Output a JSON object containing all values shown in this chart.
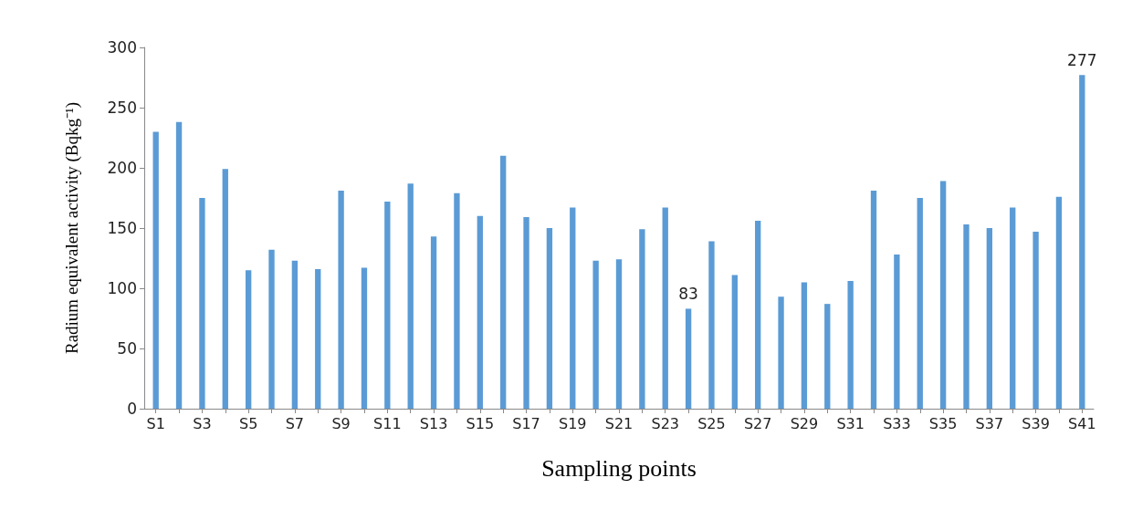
{
  "chart_data": {
    "type": "bar",
    "xlabel": "Sampling points",
    "ylabel": "Radium equivalent activity (Bqkg⁻¹)",
    "categories": [
      "S1",
      null,
      "S3",
      null,
      "S5",
      null,
      "S7",
      null,
      "S9",
      null,
      "S11",
      null,
      "S13",
      null,
      "S15",
      null,
      "S17",
      null,
      "S19",
      null,
      "S21",
      null,
      "S23",
      null,
      "S25",
      null,
      "S27",
      null,
      "S29",
      null,
      "S31",
      null,
      "S33",
      null,
      "S35",
      null,
      "S37",
      null,
      "S39",
      null,
      "S41"
    ],
    "values": [
      230,
      238,
      175,
      199,
      115,
      132,
      123,
      116,
      181,
      117,
      172,
      187,
      143,
      179,
      160,
      210,
      159,
      150,
      167,
      123,
      124,
      149,
      167,
      83,
      139,
      111,
      156,
      93,
      105,
      87,
      106,
      181,
      128,
      175,
      189,
      153,
      150,
      167,
      147,
      176,
      277
    ],
    "value_labels": [
      null,
      null,
      null,
      null,
      null,
      null,
      null,
      null,
      null,
      null,
      null,
      null,
      null,
      null,
      null,
      null,
      null,
      null,
      null,
      null,
      null,
      null,
      null,
      "83",
      null,
      null,
      null,
      null,
      null,
      null,
      null,
      null,
      null,
      null,
      null,
      null,
      null,
      null,
      null,
      null,
      "277"
    ],
    "color": "#5b9bd5",
    "ylim": [
      0,
      300
    ],
    "yticks": [
      0,
      50,
      100,
      150,
      200,
      250,
      300
    ],
    "grid": false
  }
}
